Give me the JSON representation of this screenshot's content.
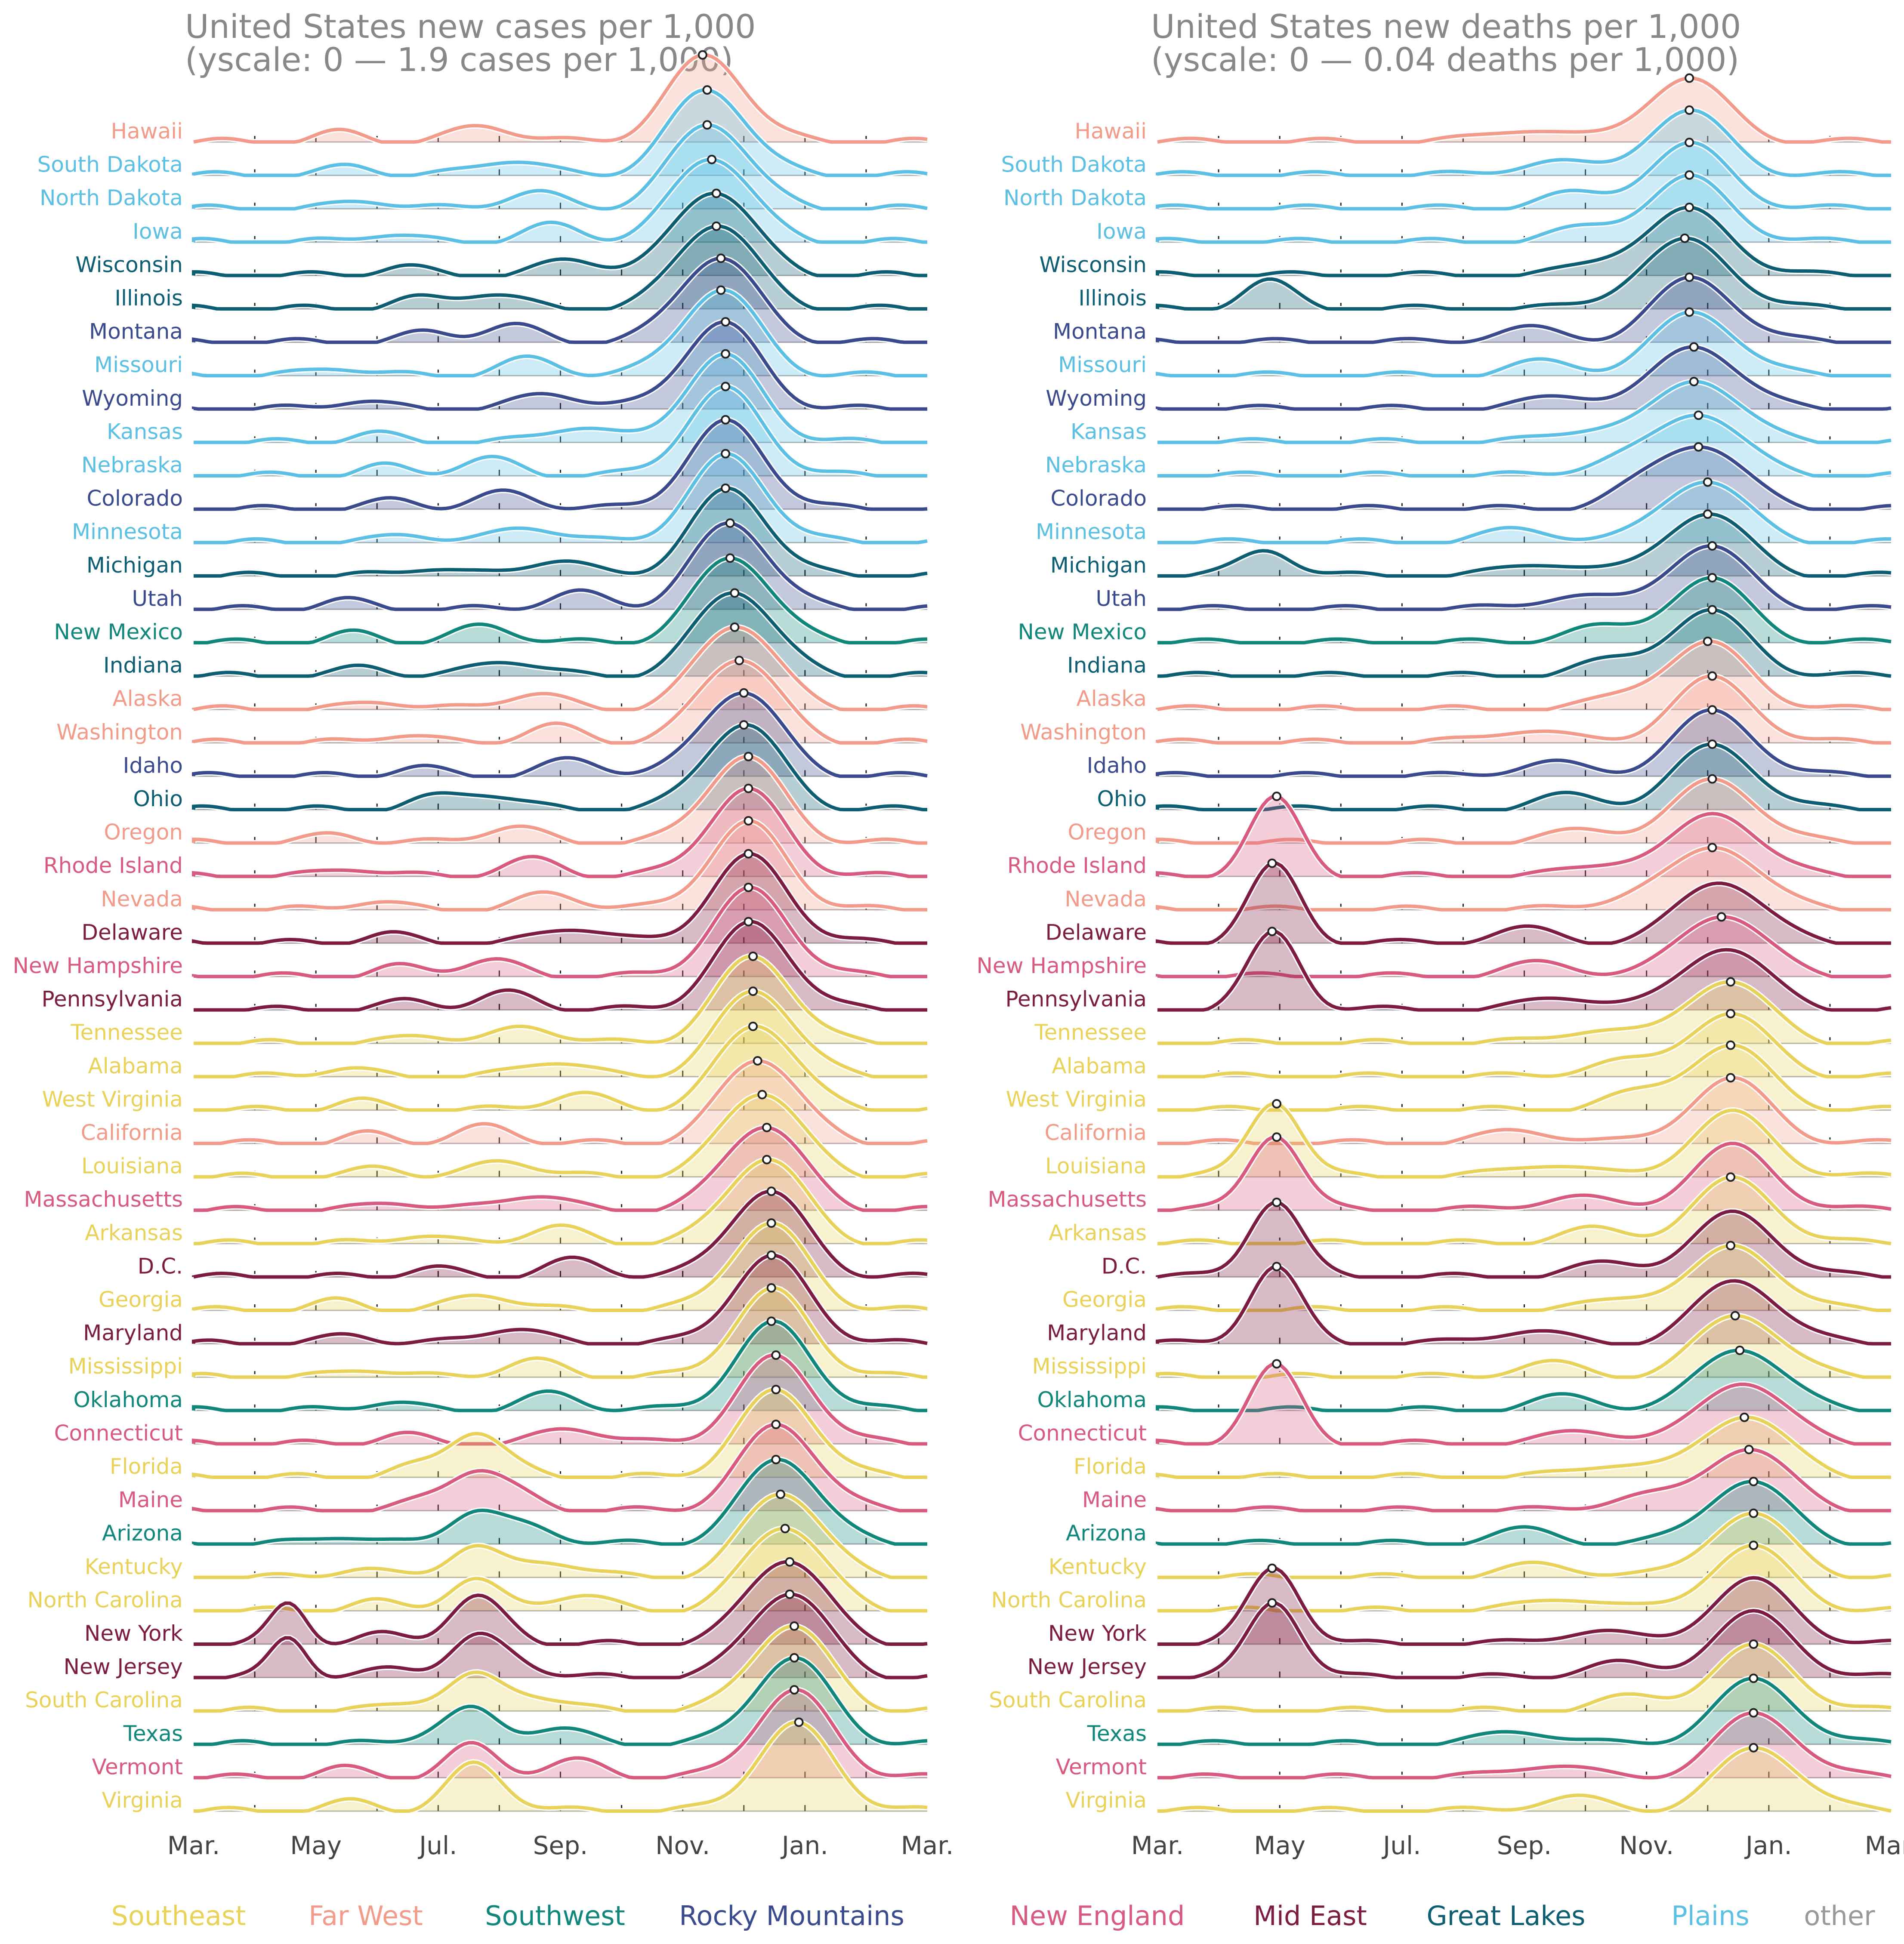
{
  "chart_data": [
    {
      "type": "ridgeline",
      "title_line1": "United States new cases per 1,000",
      "title_line2": "(yscale: 0 — 1.9 cases per 1,000)",
      "ylim": [
        0,
        1.9
      ],
      "x_tick_labels": [
        "Mar.",
        "May",
        "Jul.",
        "Sep.",
        "Nov.",
        "Jan.",
        "Mar."
      ],
      "x_range": [
        "Mar. 2020",
        "Mar. 2021"
      ]
    },
    {
      "type": "ridgeline",
      "title_line1": "United States new deaths per 1,000",
      "title_line2": "(yscale: 0 — 0.04 deaths per 1,000)",
      "ylim": [
        0,
        0.04
      ],
      "x_tick_labels": [
        "Mar.",
        "May",
        "Jul.",
        "Sep.",
        "Nov.",
        "Jan.",
        "Mar."
      ],
      "x_range": [
        "Mar. 2020",
        "Mar. 2021"
      ]
    }
  ],
  "region_colors": {
    "Southeast": "#e8d25a",
    "Far West": "#f29b8a",
    "Southwest": "#10877a",
    "Rocky Mountains": "#3a4a8c",
    "New England": "#d85a7f",
    "Mid East": "#7d1c42",
    "Great Lakes": "#0d5e72",
    "Plains": "#5bc0e3",
    "other": "#999999"
  },
  "states": [
    {
      "name": "Hawaii",
      "region": "Far West"
    },
    {
      "name": "South Dakota",
      "region": "Plains"
    },
    {
      "name": "North Dakota",
      "region": "Plains"
    },
    {
      "name": "Iowa",
      "region": "Plains"
    },
    {
      "name": "Wisconsin",
      "region": "Great Lakes"
    },
    {
      "name": "Illinois",
      "region": "Great Lakes"
    },
    {
      "name": "Montana",
      "region": "Rocky Mountains"
    },
    {
      "name": "Missouri",
      "region": "Plains"
    },
    {
      "name": "Wyoming",
      "region": "Rocky Mountains"
    },
    {
      "name": "Kansas",
      "region": "Plains"
    },
    {
      "name": "Nebraska",
      "region": "Plains"
    },
    {
      "name": "Colorado",
      "region": "Rocky Mountains"
    },
    {
      "name": "Minnesota",
      "region": "Plains"
    },
    {
      "name": "Michigan",
      "region": "Great Lakes"
    },
    {
      "name": "Utah",
      "region": "Rocky Mountains"
    },
    {
      "name": "New Mexico",
      "region": "Southwest"
    },
    {
      "name": "Indiana",
      "region": "Great Lakes"
    },
    {
      "name": "Alaska",
      "region": "Far West"
    },
    {
      "name": "Washington",
      "region": "Far West"
    },
    {
      "name": "Idaho",
      "region": "Rocky Mountains"
    },
    {
      "name": "Ohio",
      "region": "Great Lakes"
    },
    {
      "name": "Oregon",
      "region": "Far West"
    },
    {
      "name": "Rhode Island",
      "region": "New England"
    },
    {
      "name": "Nevada",
      "region": "Far West"
    },
    {
      "name": "Delaware",
      "region": "Mid East"
    },
    {
      "name": "New Hampshire",
      "region": "New England"
    },
    {
      "name": "Pennsylvania",
      "region": "Mid East"
    },
    {
      "name": "Tennessee",
      "region": "Southeast"
    },
    {
      "name": "Alabama",
      "region": "Southeast"
    },
    {
      "name": "West Virginia",
      "region": "Southeast"
    },
    {
      "name": "California",
      "region": "Far West"
    },
    {
      "name": "Louisiana",
      "region": "Southeast"
    },
    {
      "name": "Massachusetts",
      "region": "New England"
    },
    {
      "name": "Arkansas",
      "region": "Southeast"
    },
    {
      "name": "D.C.",
      "region": "Mid East"
    },
    {
      "name": "Georgia",
      "region": "Southeast"
    },
    {
      "name": "Maryland",
      "region": "Mid East"
    },
    {
      "name": "Mississippi",
      "region": "Southeast"
    },
    {
      "name": "Oklahoma",
      "region": "Southwest"
    },
    {
      "name": "Connecticut",
      "region": "New England"
    },
    {
      "name": "Florida",
      "region": "Southeast"
    },
    {
      "name": "Maine",
      "region": "New England"
    },
    {
      "name": "Arizona",
      "region": "Southwest"
    },
    {
      "name": "Kentucky",
      "region": "Southeast"
    },
    {
      "name": "North Carolina",
      "region": "Southeast"
    },
    {
      "name": "New York",
      "region": "Mid East"
    },
    {
      "name": "New Jersey",
      "region": "Mid East"
    },
    {
      "name": "South Carolina",
      "region": "Southeast"
    },
    {
      "name": "Texas",
      "region": "Southwest"
    },
    {
      "name": "Vermont",
      "region": "New England"
    },
    {
      "name": "Virginia",
      "region": "Southeast"
    }
  ],
  "legend": [
    "Southeast",
    "Far West",
    "Southwest",
    "Rocky Mountains",
    "New England",
    "Mid East",
    "Great Lakes",
    "Plains",
    "other"
  ]
}
